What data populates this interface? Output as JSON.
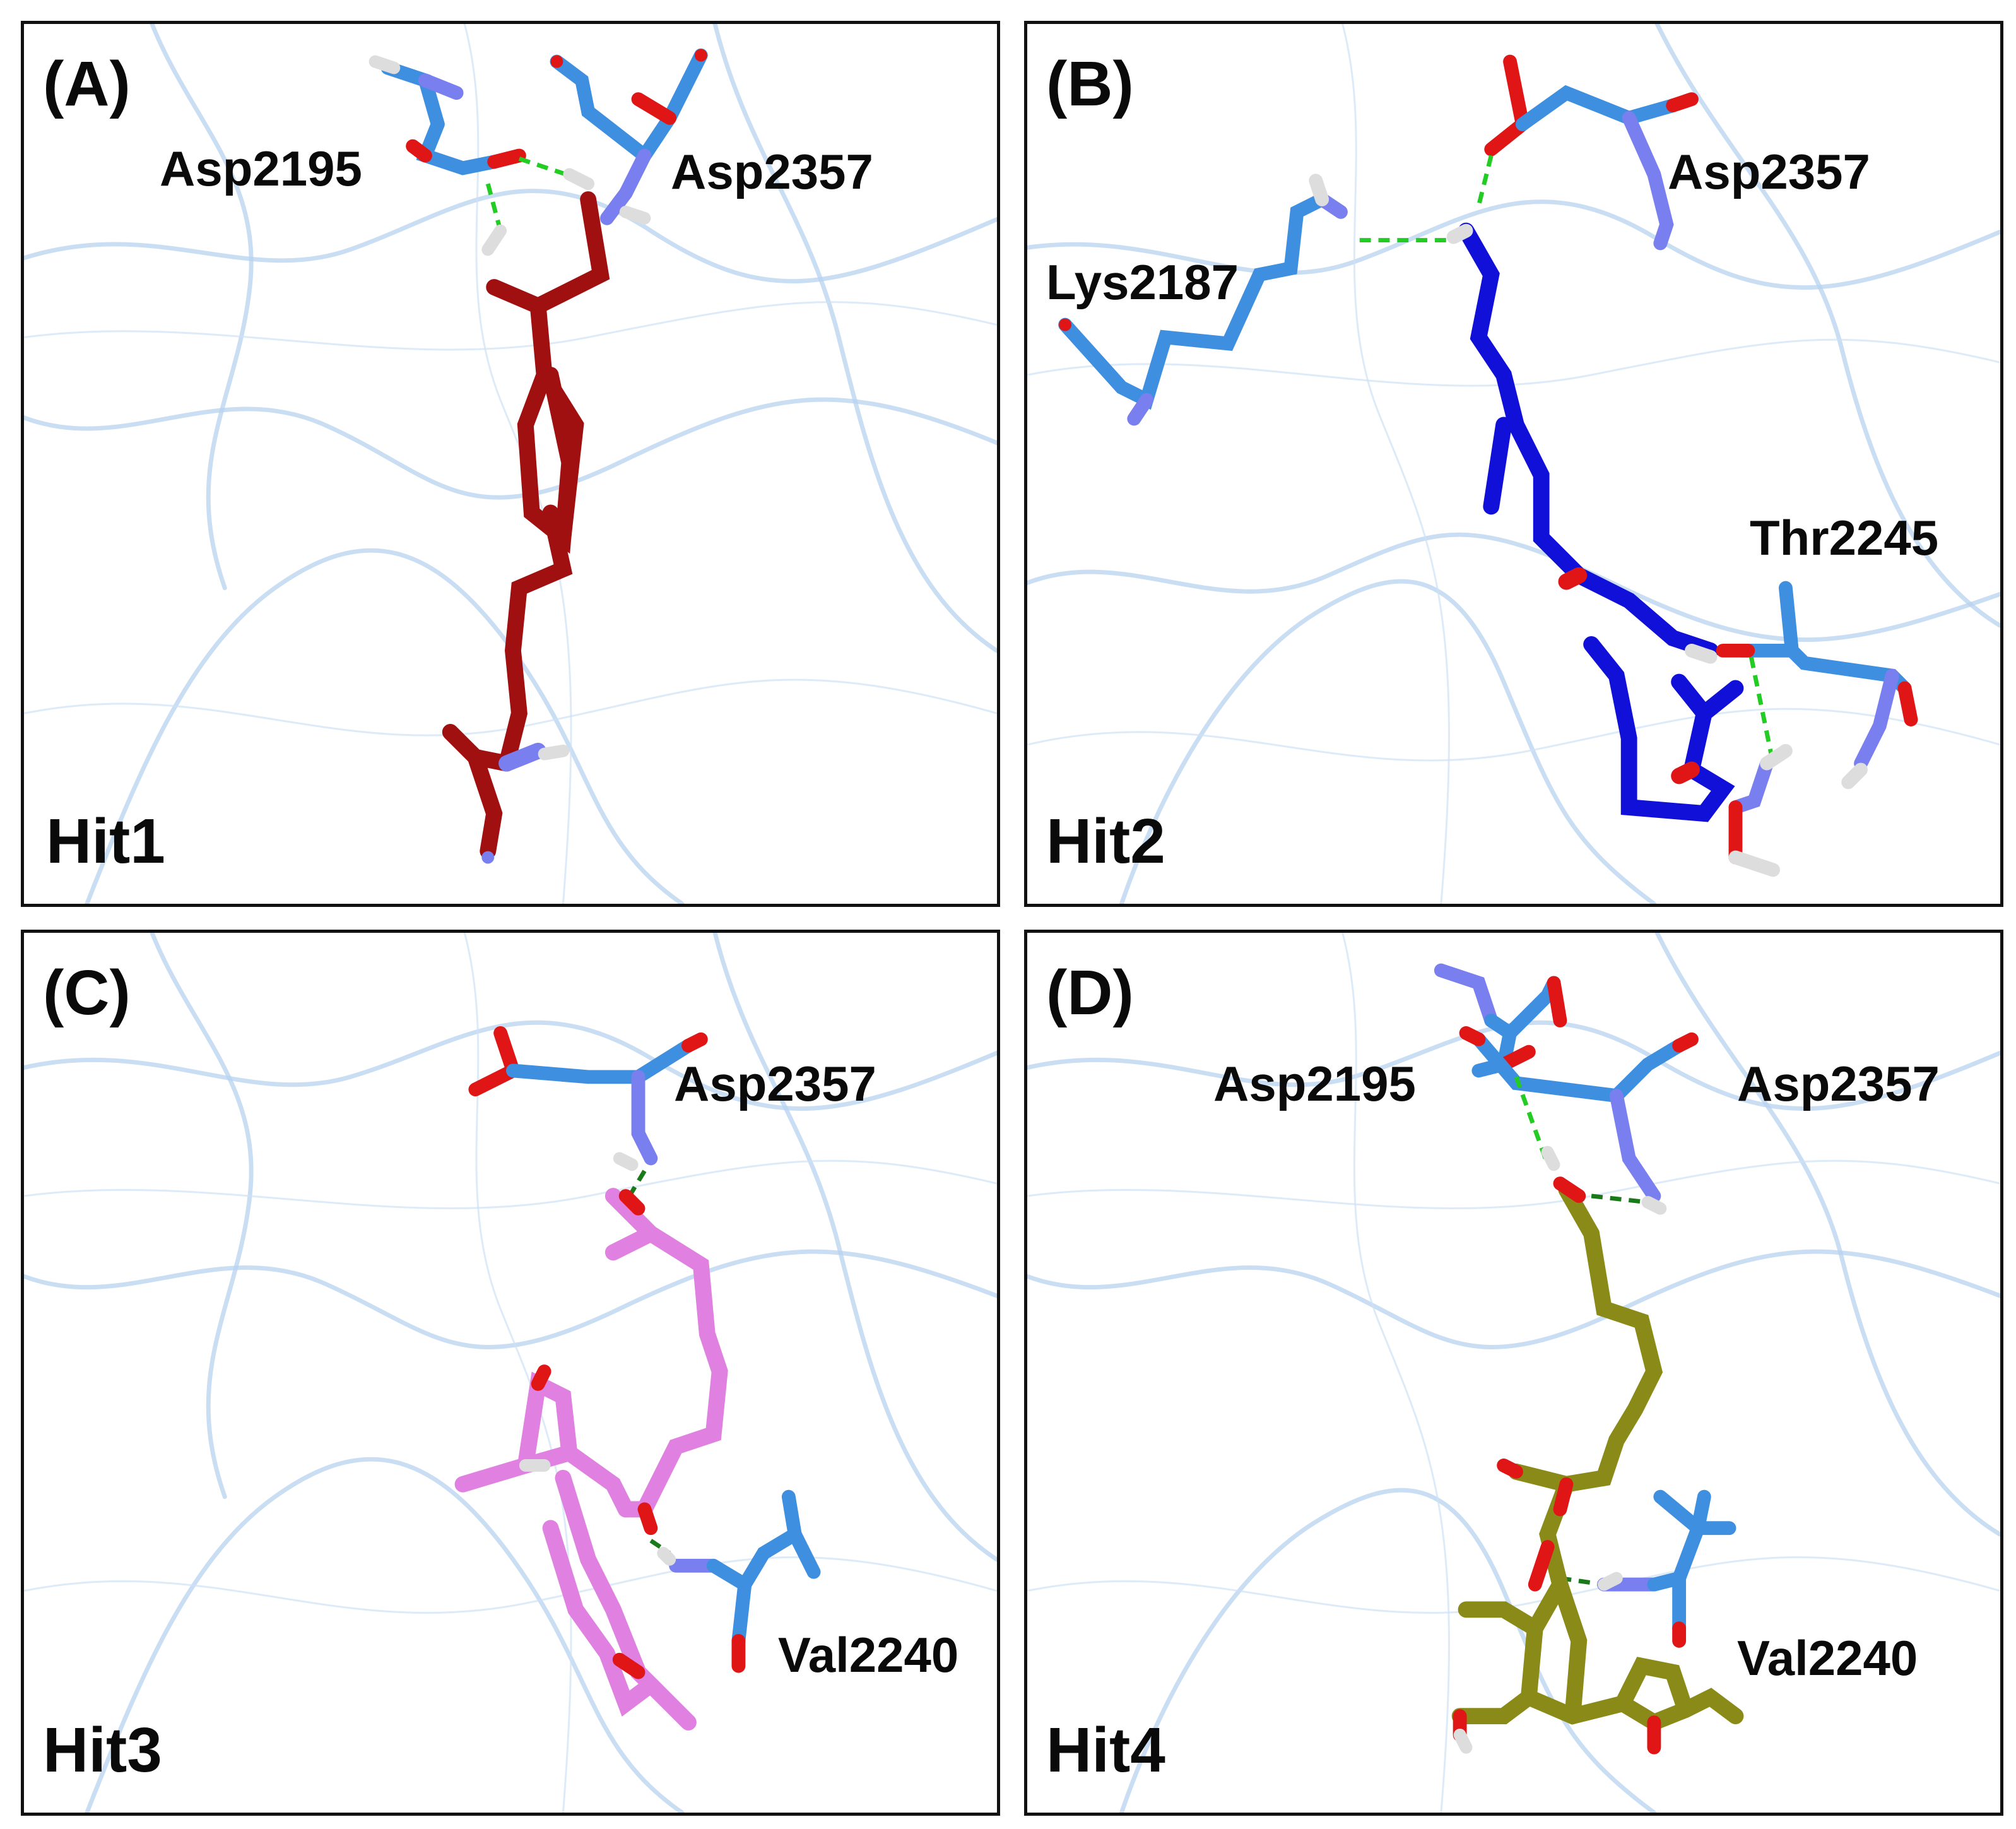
{
  "colors": {
    "ribbon": "#b7d2ef",
    "residue_carbon": "#3f8fe0",
    "nitrogen": "#7a7ff0",
    "oxygen": "#e01515",
    "hydrogen": "#eeeeee",
    "hbond": "#22cc22",
    "hit1": "#a01010",
    "hit2": "#1010d8",
    "hit3": "#e080e0",
    "hit4": "#8a8a18"
  },
  "panels": [
    {
      "letter": "(A)",
      "hit": "Hit1",
      "residues": [
        "Asp2195",
        "Asp2357"
      ]
    },
    {
      "letter": "(B)",
      "hit": "Hit2",
      "residues": [
        "Asp2357",
        "Lys2187",
        "Thr2245"
      ]
    },
    {
      "letter": "(C)",
      "hit": "Hit3",
      "residues": [
        "Asp2357",
        "Val2240"
      ]
    },
    {
      "letter": "(D)",
      "hit": "Hit4",
      "residues": [
        "Asp2195",
        "Asp2357",
        "Val2240"
      ]
    }
  ]
}
